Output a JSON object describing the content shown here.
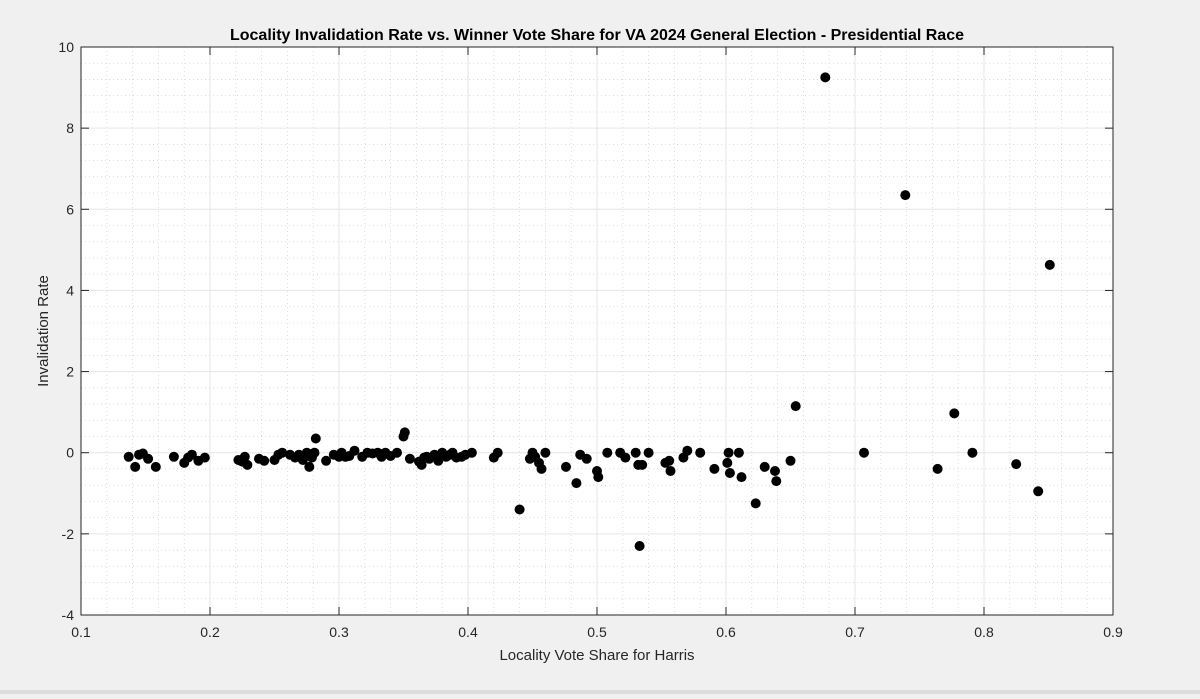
{
  "chart_data": {
    "type": "scatter",
    "title": "Locality Invalidation Rate vs. Winner Vote Share for VA 2024 General Election - Presidential Race",
    "xlabel": "Locality Vote Share for Harris",
    "ylabel": "Invalidation Rate",
    "xlim": [
      0.1,
      0.9
    ],
    "ylim": [
      -4,
      10
    ],
    "xticks": [
      "0.1",
      "0.2",
      "0.3",
      "0.4",
      "0.5",
      "0.6",
      "0.7",
      "0.8",
      "0.9"
    ],
    "yticks": [
      "-4",
      "-2",
      "0",
      "2",
      "4",
      "6",
      "8",
      "10"
    ],
    "grid": true,
    "minor_grid": true,
    "marker_color": "#000000",
    "points": [
      [
        0.137,
        -0.1
      ],
      [
        0.142,
        -0.35
      ],
      [
        0.145,
        -0.05
      ],
      [
        0.148,
        -0.02
      ],
      [
        0.152,
        -0.15
      ],
      [
        0.158,
        -0.35
      ],
      [
        0.172,
        -0.1
      ],
      [
        0.18,
        -0.25
      ],
      [
        0.183,
        -0.12
      ],
      [
        0.186,
        -0.05
      ],
      [
        0.191,
        -0.2
      ],
      [
        0.196,
        -0.12
      ],
      [
        0.222,
        -0.18
      ],
      [
        0.225,
        -0.22
      ],
      [
        0.227,
        -0.1
      ],
      [
        0.229,
        -0.3
      ],
      [
        0.238,
        -0.15
      ],
      [
        0.242,
        -0.2
      ],
      [
        0.25,
        -0.18
      ],
      [
        0.253,
        -0.05
      ],
      [
        0.256,
        0.0
      ],
      [
        0.262,
        -0.05
      ],
      [
        0.266,
        -0.12
      ],
      [
        0.269,
        -0.05
      ],
      [
        0.272,
        -0.18
      ],
      [
        0.275,
        0.0
      ],
      [
        0.277,
        -0.35
      ],
      [
        0.279,
        -0.12
      ],
      [
        0.281,
        0.0
      ],
      [
        0.282,
        0.35
      ],
      [
        0.29,
        -0.2
      ],
      [
        0.296,
        -0.05
      ],
      [
        0.3,
        -0.1
      ],
      [
        0.302,
        0.0
      ],
      [
        0.305,
        -0.1
      ],
      [
        0.308,
        -0.08
      ],
      [
        0.312,
        0.05
      ],
      [
        0.318,
        -0.1
      ],
      [
        0.322,
        0.0
      ],
      [
        0.326,
        -0.02
      ],
      [
        0.33,
        0.0
      ],
      [
        0.333,
        -0.1
      ],
      [
        0.336,
        0.0
      ],
      [
        0.34,
        -0.08
      ],
      [
        0.345,
        0.0
      ],
      [
        0.35,
        0.4
      ],
      [
        0.351,
        0.5
      ],
      [
        0.355,
        -0.15
      ],
      [
        0.362,
        -0.22
      ],
      [
        0.364,
        -0.3
      ],
      [
        0.366,
        -0.12
      ],
      [
        0.368,
        -0.1
      ],
      [
        0.37,
        -0.15
      ],
      [
        0.374,
        -0.05
      ],
      [
        0.377,
        -0.2
      ],
      [
        0.38,
        0.0
      ],
      [
        0.383,
        -0.1
      ],
      [
        0.386,
        -0.05
      ],
      [
        0.388,
        0.0
      ],
      [
        0.391,
        -0.12
      ],
      [
        0.395,
        -0.1
      ],
      [
        0.398,
        -0.05
      ],
      [
        0.403,
        0.0
      ],
      [
        0.42,
        -0.12
      ],
      [
        0.423,
        0.0
      ],
      [
        0.44,
        -1.4
      ],
      [
        0.448,
        -0.15
      ],
      [
        0.45,
        0.0
      ],
      [
        0.452,
        -0.1
      ],
      [
        0.455,
        -0.25
      ],
      [
        0.457,
        -0.4
      ],
      [
        0.46,
        0.0
      ],
      [
        0.476,
        -0.35
      ],
      [
        0.484,
        -0.75
      ],
      [
        0.487,
        -0.05
      ],
      [
        0.492,
        -0.15
      ],
      [
        0.5,
        -0.45
      ],
      [
        0.501,
        -0.6
      ],
      [
        0.508,
        0.0
      ],
      [
        0.518,
        0.0
      ],
      [
        0.522,
        -0.12
      ],
      [
        0.53,
        0.0
      ],
      [
        0.532,
        -0.3
      ],
      [
        0.533,
        -2.3
      ],
      [
        0.535,
        -0.3
      ],
      [
        0.54,
        0.0
      ],
      [
        0.553,
        -0.25
      ],
      [
        0.556,
        -0.2
      ],
      [
        0.557,
        -0.45
      ],
      [
        0.567,
        -0.12
      ],
      [
        0.57,
        0.05
      ],
      [
        0.58,
        0.0
      ],
      [
        0.591,
        -0.4
      ],
      [
        0.601,
        -0.25
      ],
      [
        0.602,
        0.0
      ],
      [
        0.603,
        -0.5
      ],
      [
        0.61,
        0.0
      ],
      [
        0.612,
        -0.6
      ],
      [
        0.623,
        -1.25
      ],
      [
        0.63,
        -0.35
      ],
      [
        0.638,
        -0.45
      ],
      [
        0.639,
        -0.7
      ],
      [
        0.65,
        -0.2
      ],
      [
        0.654,
        1.15
      ],
      [
        0.677,
        9.25
      ],
      [
        0.707,
        0.0
      ],
      [
        0.739,
        6.35
      ],
      [
        0.764,
        -0.4
      ],
      [
        0.777,
        0.97
      ],
      [
        0.791,
        0.0
      ],
      [
        0.825,
        -0.28
      ],
      [
        0.842,
        -0.95
      ],
      [
        0.851,
        4.63
      ]
    ]
  }
}
